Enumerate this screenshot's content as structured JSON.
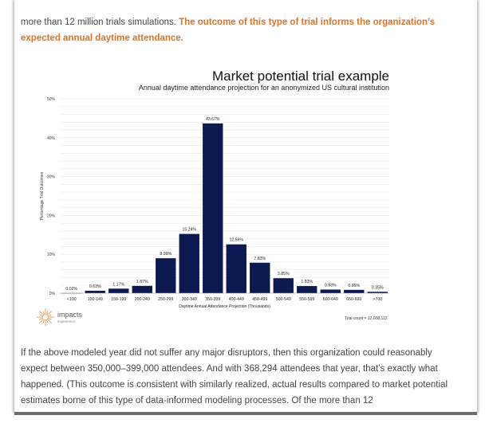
{
  "article": {
    "para_top_plain": "more than 12 million trials simulations. ",
    "para_top_highlight": "The outcome of this type of trial informs the organization’s expected annual daytime attendance.",
    "para_bottom": "If the above modeled year did not suffer any major disruptors, then this organization could reasonably expect between 350,000–399,000 attendees. And with 368,294 attendees that year, that’s exactly what happened. (This outcome is consistent with similarly realized, actual results compared to market potential estimates borne of this type of data-informed modeling processes. Of the more than 12"
  },
  "colors": {
    "bar": "#0d1a52",
    "highlight": "#d9732c",
    "logo": "#e8893a"
  },
  "logo": {
    "name": "impacts",
    "tagline": "experience",
    "icon": "sunburst-icon"
  },
  "chart_data": {
    "type": "bar",
    "title": "Market potential trial example",
    "subtitle": "Annual daytime attendance projection for an anonymized US cultural institution",
    "xlabel": "Daytime Annual Attendance Projection (Thousands)",
    "ylabel": "Percentage Trial Outcomes",
    "categories": [
      "<100",
      "100-149",
      "150-199",
      "200-249",
      "250-299",
      "300-349",
      "350-399",
      "400-449",
      "450-499",
      "500-549",
      "550-599",
      "600-649",
      "650-699",
      ">700"
    ],
    "values": [
      0.02,
      0.63,
      1.17,
      1.87,
      8.99,
      15.24,
      43.67,
      12.56,
      7.83,
      3.85,
      1.83,
      0.93,
      0.85,
      0.35
    ],
    "value_labels": [
      "0.02%",
      "0.63%",
      "1.17%",
      "1.87%",
      "8.99%",
      "15.24%",
      "43.67%",
      "12.56%",
      "7.83%",
      "3.85%",
      "1.83%",
      "0.93%",
      "0.85%",
      "0.35%"
    ],
    "ylim": [
      0,
      50
    ],
    "yticks": [
      0,
      10,
      20,
      30,
      40,
      50
    ],
    "ytick_labels": [
      "0%",
      "10%",
      "20%",
      "30%",
      "40%",
      "50%"
    ],
    "grid": true,
    "footnote": "Trial count = 12,008,112"
  }
}
